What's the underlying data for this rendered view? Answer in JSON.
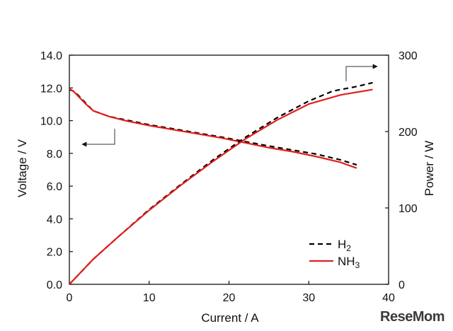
{
  "chart_data": {
    "type": "line",
    "xlabel": "Current / A",
    "ylabel_left": "Voltage / V",
    "ylabel_right": "Power / W",
    "xlim": [
      0,
      40
    ],
    "ylim_left": [
      0,
      14
    ],
    "ylim_right": [
      0,
      300
    ],
    "x_ticks": [
      "0",
      "10",
      "20",
      "30",
      "40"
    ],
    "y_left_ticks": [
      "0.0",
      "2.0",
      "4.0",
      "6.0",
      "8.0",
      "10.0",
      "12.0",
      "14.0"
    ],
    "y_right_ticks": [
      "0",
      "100",
      "200",
      "300"
    ],
    "grid": false,
    "legend_position": "bottom-right",
    "series": [
      {
        "name": "H2",
        "label_main": "H",
        "label_sub": "2",
        "axis": "left",
        "style": "dashed",
        "color": "#000000",
        "x": [
          0,
          0.5,
          1,
          2,
          3,
          5,
          7,
          10,
          13,
          16,
          19,
          22,
          25,
          28,
          31,
          34,
          36
        ],
        "y": [
          11.9,
          11.8,
          11.6,
          11.1,
          10.6,
          10.25,
          10.05,
          9.75,
          9.5,
          9.25,
          9.0,
          8.72,
          8.45,
          8.2,
          7.95,
          7.6,
          7.3
        ]
      },
      {
        "name": "NH3",
        "label_main": "NH",
        "label_sub": "3",
        "axis": "left",
        "style": "solid",
        "color": "#e0201e",
        "x": [
          0,
          0.5,
          1,
          2,
          3,
          5,
          7,
          10,
          13,
          16,
          19,
          22,
          25,
          28,
          31,
          34,
          36
        ],
        "y": [
          11.95,
          11.8,
          11.55,
          11.05,
          10.6,
          10.25,
          10.0,
          9.7,
          9.45,
          9.2,
          8.95,
          8.65,
          8.35,
          8.1,
          7.8,
          7.45,
          7.1
        ]
      },
      {
        "name": "H2 power",
        "axis": "right",
        "style": "dashed",
        "color": "#000000",
        "x": [
          0,
          1,
          3,
          6,
          10,
          14,
          18,
          22,
          26,
          30,
          33,
          36,
          38
        ],
        "y": [
          0,
          11,
          33,
          61,
          98,
          131,
          163,
          192,
          218,
          240,
          253,
          259,
          264
        ]
      },
      {
        "name": "NH3 power",
        "axis": "right",
        "style": "solid",
        "color": "#e0201e",
        "x": [
          0,
          1,
          3,
          6,
          10,
          14,
          18,
          22,
          26,
          30,
          34,
          38
        ],
        "y": [
          0,
          11,
          33,
          61,
          97,
          130,
          161,
          190,
          215,
          236,
          248,
          255
        ]
      }
    ],
    "annotations": [
      {
        "name": "left-arrow",
        "meaning": "voltage curves refer to left axis"
      },
      {
        "name": "right-arrow",
        "meaning": "power curves refer to right axis"
      }
    ]
  },
  "watermark": "ReseMom"
}
